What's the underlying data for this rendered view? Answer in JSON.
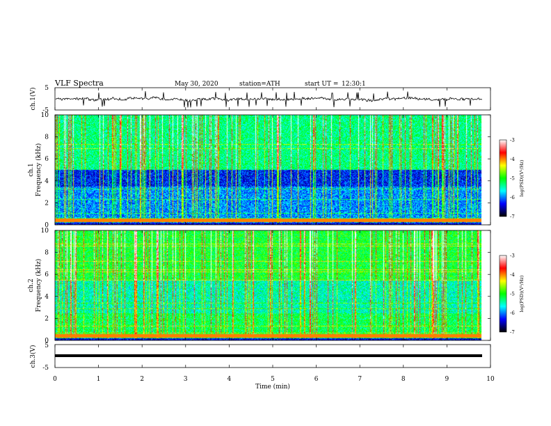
{
  "header": {
    "title": "VLF Spectra",
    "date": "May 30, 2020",
    "station": "station=ATH",
    "start": "start UT =",
    "start_time": "12:30:1"
  },
  "chart_data": [
    {
      "type": "line",
      "name": "ch1-waveform",
      "ylabel": "ch.1(V)",
      "ylim": [
        -5,
        5
      ],
      "yticks": [
        "5",
        "-5"
      ],
      "xlim": [
        0,
        10
      ],
      "description_values": "noisy waveform near 0 V with sharp spikes"
    },
    {
      "type": "heatmap",
      "name": "ch1-spectrogram",
      "ylabel": "ch.1 Frequency (kHz)",
      "ylabel_line1": "ch.1",
      "ylabel_line2": "Frequency (kHz)",
      "ylim": [
        0,
        10
      ],
      "yticks": [
        "0",
        "2",
        "4",
        "6",
        "8",
        "10"
      ],
      "xlim": [
        0,
        9.8
      ],
      "colorbar": {
        "label": "log(PSD)(V²/Hz)",
        "range": [
          -7,
          -3
        ],
        "ticks": [
          "-3",
          "-4",
          "-5",
          "-6",
          "-7"
        ]
      }
    },
    {
      "type": "heatmap",
      "name": "ch2-spectrogram",
      "ylabel": "ch.2 Frequency (kHz)",
      "ylabel_line1": "ch.2",
      "ylabel_line2": "Frequency (kHz)",
      "ylim": [
        0,
        10
      ],
      "yticks": [
        "0",
        "2",
        "4",
        "6",
        "8",
        "10"
      ],
      "xlim": [
        0,
        9.8
      ],
      "colorbar": {
        "label": "log(PSD)(V²/Hz)",
        "range": [
          -7,
          -3
        ],
        "ticks": [
          "-3",
          "-4",
          "-5",
          "-6",
          "-7"
        ]
      }
    },
    {
      "type": "line",
      "name": "ch3-waveform",
      "ylabel": "ch.3(V)",
      "ylim": [
        -5,
        5
      ],
      "yticks": [
        "5",
        "-5"
      ],
      "xlim": [
        0,
        10
      ],
      "constant_value": -0.3
    }
  ],
  "x_axis": {
    "label": "Time (min)",
    "ticks": [
      "0",
      "1",
      "2",
      "3",
      "4",
      "5",
      "6",
      "7",
      "8",
      "9",
      "10"
    ],
    "range": [
      0,
      10
    ]
  },
  "colors": {
    "frame": "#000000",
    "background": "#ffffff",
    "colormap": [
      "#000000",
      "#0000ff",
      "#00ffff",
      "#00ff00",
      "#ffff00",
      "#ff0000",
      "#ffffff"
    ]
  }
}
